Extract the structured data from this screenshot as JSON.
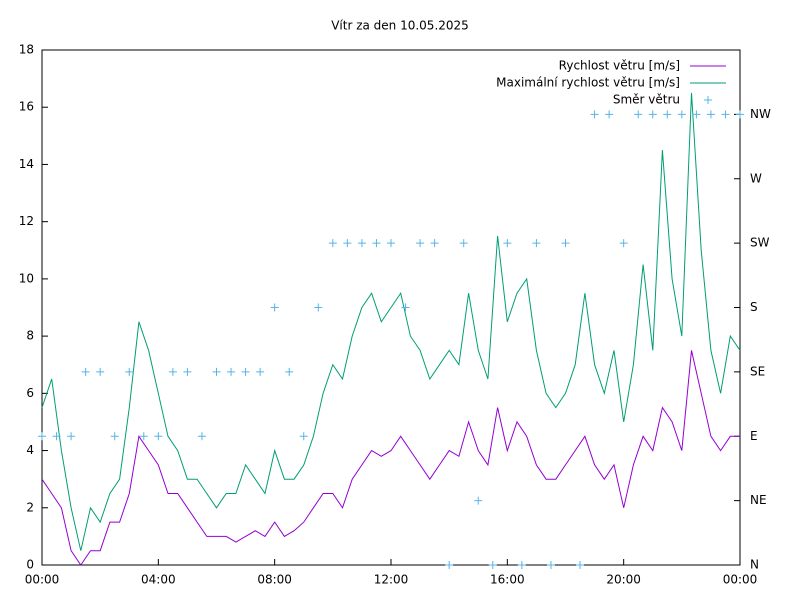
{
  "chart_data": {
    "type": "line",
    "title": "Vítr za den 10.05.2025",
    "x": [
      0,
      0.333,
      0.667,
      1,
      1.333,
      1.667,
      2,
      2.333,
      2.667,
      3,
      3.333,
      3.667,
      4,
      4.333,
      4.667,
      5,
      5.333,
      5.667,
      6,
      6.333,
      6.667,
      7,
      7.333,
      7.667,
      8,
      8.333,
      8.667,
      9,
      9.333,
      9.667,
      10,
      10.333,
      10.667,
      11,
      11.333,
      11.667,
      12,
      12.333,
      12.667,
      13,
      13.333,
      13.667,
      14,
      14.333,
      14.667,
      15,
      15.333,
      15.667,
      16,
      16.333,
      16.667,
      17,
      17.333,
      17.667,
      18,
      18.333,
      18.667,
      19,
      19.333,
      19.667,
      20,
      20.333,
      20.667,
      21,
      21.333,
      21.667,
      22,
      22.333,
      22.667,
      23,
      23.333,
      23.667,
      24
    ],
    "series": [
      {
        "name": "Rychlost větru [m/s]",
        "color": "#9400d3",
        "values": [
          3,
          2.5,
          2,
          0.5,
          0,
          0.5,
          0.5,
          1.5,
          1.5,
          2.5,
          4.5,
          4,
          3.5,
          2.5,
          2.5,
          2,
          1.5,
          1,
          1,
          1,
          0.8,
          1,
          1.2,
          1,
          1.5,
          1,
          1.2,
          1.5,
          2,
          2.5,
          2.5,
          2,
          3,
          3.5,
          4,
          3.8,
          4,
          4.5,
          4,
          3.5,
          3,
          3.5,
          4,
          3.8,
          5,
          4,
          3.5,
          5.5,
          4,
          5,
          4.5,
          3.5,
          3,
          3,
          3.5,
          4,
          4.5,
          3.5,
          3,
          3.5,
          2,
          3.5,
          4.5,
          4,
          5.5,
          5,
          4,
          7.5,
          6,
          4.5,
          4,
          4.5,
          4.5
        ]
      },
      {
        "name": "Maximální rychlost větru [m/s]",
        "color": "#009e73",
        "values": [
          5.5,
          6.5,
          4,
          2,
          0.5,
          2,
          1.5,
          2.5,
          3,
          5.5,
          8.5,
          7.5,
          6,
          4.5,
          4,
          3,
          3,
          2.5,
          2,
          2.5,
          2.5,
          3.5,
          3,
          2.5,
          4,
          3,
          3,
          3.5,
          4.5,
          6,
          7,
          6.5,
          8,
          9,
          9.5,
          8.5,
          9,
          9.5,
          8,
          7.5,
          6.5,
          7,
          7.5,
          7,
          9.5,
          7.5,
          6.5,
          11.5,
          8.5,
          9.5,
          10,
          7.5,
          6,
          5.5,
          6,
          7,
          9.5,
          7,
          6,
          7.5,
          5,
          7,
          10.5,
          7.5,
          14.5,
          10,
          8,
          16.5,
          11,
          7.5,
          6,
          8,
          7.5
        ]
      },
      {
        "name": "Směr větru",
        "color": "#56b4e9",
        "style": "points",
        "axis": "y2",
        "x": [
          0,
          0.5,
          1,
          1.5,
          2,
          2.5,
          3,
          3.5,
          4,
          4.5,
          5,
          5.5,
          6,
          6.5,
          7,
          7.5,
          8,
          8.5,
          9,
          9.5,
          10,
          10.5,
          11,
          11.5,
          12,
          12.5,
          13,
          13.5,
          14,
          14.5,
          15,
          15.5,
          16,
          16.5,
          17,
          17.5,
          18,
          18.5,
          19,
          19.5,
          20,
          20.5,
          21,
          21.5,
          22,
          22.5,
          23,
          23.5,
          24
        ],
        "values": [
          2,
          2,
          2,
          3,
          3,
          2,
          3,
          2,
          2,
          3,
          3,
          2,
          3,
          3,
          3,
          3,
          4,
          3,
          2,
          4,
          5,
          5,
          5,
          5,
          5,
          4,
          5,
          5,
          0,
          5,
          1,
          0,
          5,
          0,
          5,
          0,
          5,
          0,
          7,
          7,
          5,
          7,
          7,
          7,
          7,
          7,
          7,
          7,
          7
        ]
      }
    ],
    "xlim": [
      0,
      24
    ],
    "xticks": [
      {
        "value": 0,
        "label": "00:00"
      },
      {
        "value": 4,
        "label": "04:00"
      },
      {
        "value": 8,
        "label": "08:00"
      },
      {
        "value": 12,
        "label": "12:00"
      },
      {
        "value": 16,
        "label": "16:00"
      },
      {
        "value": 20,
        "label": "20:00"
      },
      {
        "value": 24,
        "label": "00:00"
      }
    ],
    "ylim": [
      0,
      18
    ],
    "yticks": [
      0,
      2,
      4,
      6,
      8,
      10,
      12,
      14,
      16,
      18
    ],
    "y2lim": [
      0,
      8
    ],
    "y2ticks": [
      {
        "value": 0,
        "label": "N"
      },
      {
        "value": 1,
        "label": "NE"
      },
      {
        "value": 2,
        "label": "E"
      },
      {
        "value": 3,
        "label": "SE"
      },
      {
        "value": 4,
        "label": "S"
      },
      {
        "value": 5,
        "label": "SW"
      },
      {
        "value": 6,
        "label": "W"
      },
      {
        "value": 7,
        "label": "NW"
      }
    ],
    "grid": false,
    "legend": "top-right"
  }
}
